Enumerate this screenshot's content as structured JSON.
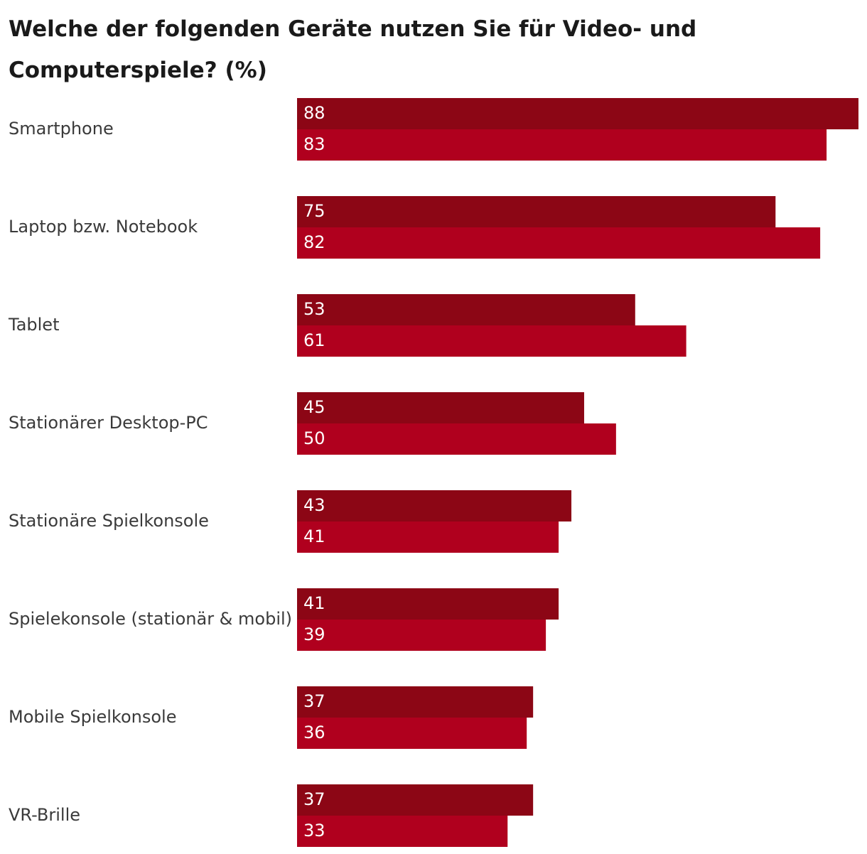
{
  "chart_data": {
    "type": "bar",
    "orientation": "horizontal",
    "title": "Welche der folgenden Geräte nutzen Sie für Video- und Computerspiele? (%)",
    "xlabel": "",
    "ylabel": "",
    "xlim": [
      0,
      88
    ],
    "grid": false,
    "legend": "none",
    "categories": [
      "Smartphone",
      "Laptop bzw. Notebook",
      "Tablet",
      "Stationärer Desktop-PC",
      "Stationäre Spielkonsole",
      "Spielekonsole (stationär & mobil)",
      "Mobile Spielkonsole",
      "VR-Brille"
    ],
    "series": [
      {
        "name": "",
        "color": "#8c0615",
        "values": [
          88,
          75,
          53,
          45,
          43,
          41,
          37,
          37
        ]
      },
      {
        "name": "",
        "color": "#b0001e",
        "values": [
          83,
          82,
          61,
          50,
          41,
          39,
          36,
          33
        ]
      }
    ]
  }
}
